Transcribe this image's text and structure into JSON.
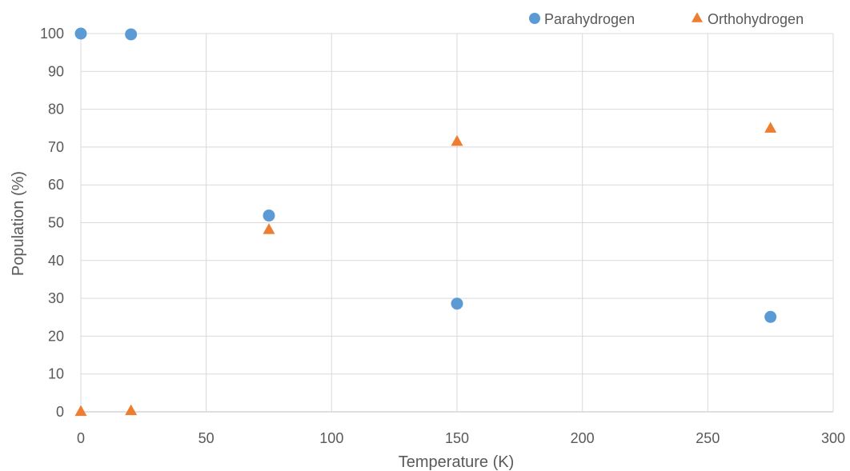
{
  "chart_data": {
    "type": "scatter",
    "title": "",
    "xlabel": "Temperature (K)",
    "ylabel": "Population (%)",
    "xlim": [
      0,
      300
    ],
    "ylim": [
      0,
      100
    ],
    "xticks": [
      0,
      50,
      100,
      150,
      200,
      250,
      300
    ],
    "yticks": [
      0,
      10,
      20,
      30,
      40,
      50,
      60,
      70,
      80,
      90,
      100
    ],
    "grid": true,
    "legend_position": "top-right",
    "series": [
      {
        "name": "Parahydrogen",
        "marker": "circle",
        "color": "#5B9BD5",
        "x": [
          0,
          20,
          75,
          150,
          275
        ],
        "y": [
          100,
          99.8,
          51.9,
          28.6,
          25.1
        ]
      },
      {
        "name": "Orthohydrogen",
        "marker": "triangle",
        "color": "#ED7D31",
        "x": [
          0,
          20,
          75,
          150,
          275
        ],
        "y": [
          0,
          0.2,
          48.1,
          71.4,
          74.9
        ]
      }
    ]
  }
}
